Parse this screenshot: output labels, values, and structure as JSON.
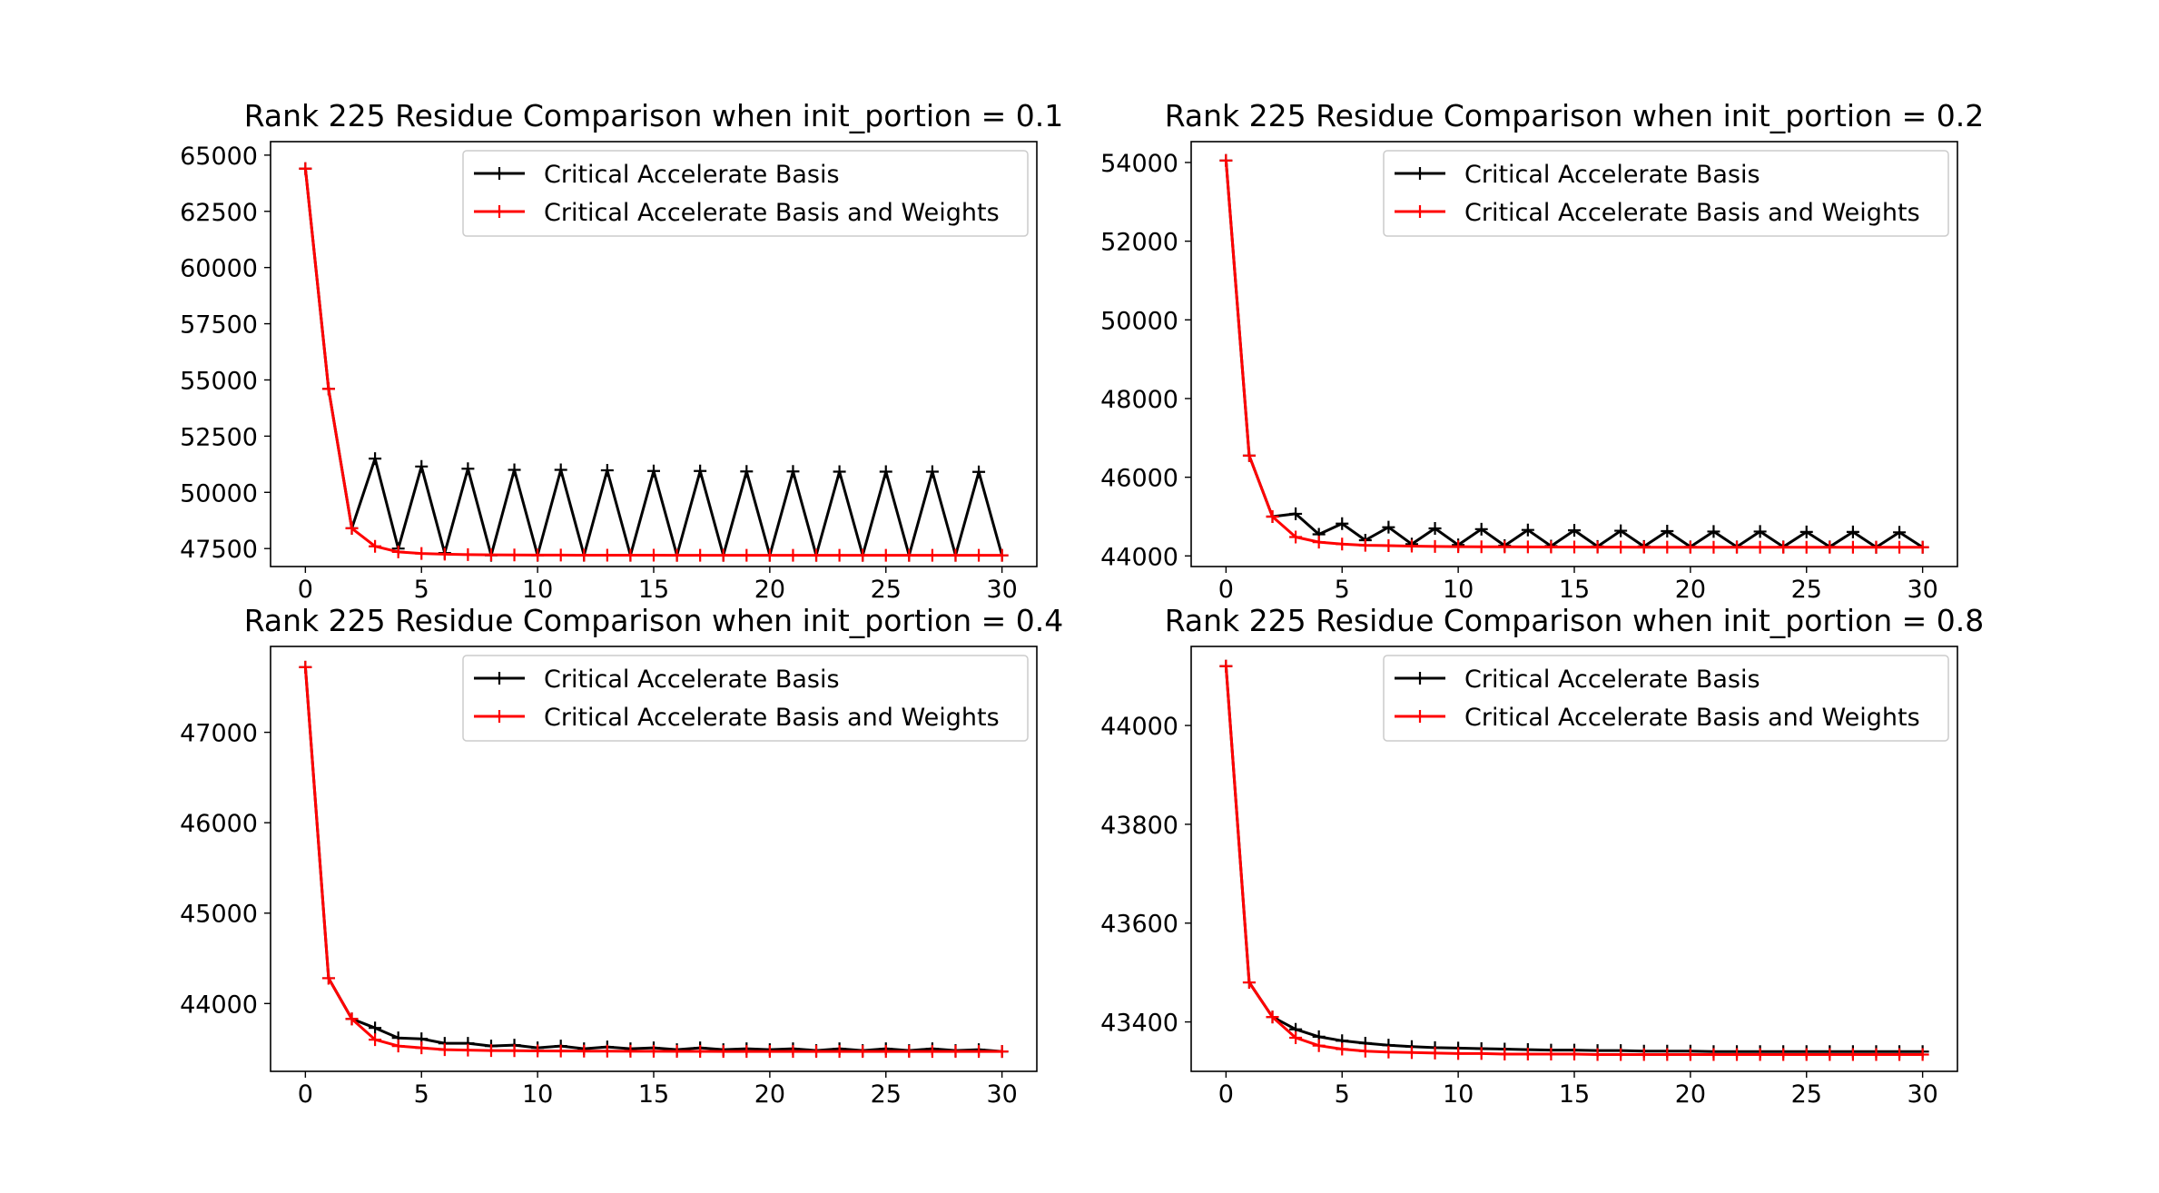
{
  "chart_data": [
    {
      "type": "line",
      "title": "Rank 225 Residue Comparison when init_portion = 0.1",
      "xlabel": "",
      "ylabel": "",
      "xlim": [
        -1.5,
        31.5
      ],
      "ylim": [
        46700,
        65600
      ],
      "xticks": [
        0,
        5,
        10,
        15,
        20,
        25,
        30
      ],
      "yticks": [
        47500,
        50000,
        52500,
        55000,
        57500,
        60000,
        62500,
        65000
      ],
      "ytick_labels": [
        "47500",
        "50000",
        "52500",
        "55000",
        "57500",
        "60000",
        "62500",
        "65000"
      ],
      "legend": "top-right",
      "grid": false,
      "series": [
        {
          "name": "Critical Accelerate Basis",
          "color": "#000000",
          "x": [
            0,
            1,
            2,
            3,
            4,
            5,
            6,
            7,
            8,
            9,
            10,
            11,
            12,
            13,
            14,
            15,
            16,
            17,
            18,
            19,
            20,
            21,
            22,
            23,
            24,
            25,
            26,
            27,
            28,
            29,
            30
          ],
          "y": [
            64400,
            54600,
            48400,
            51500,
            47500,
            51150,
            47300,
            51050,
            47200,
            51000,
            47200,
            51000,
            47200,
            50980,
            47200,
            50950,
            47200,
            50950,
            47200,
            50930,
            47200,
            50930,
            47200,
            50920,
            47200,
            50920,
            47200,
            50920,
            47200,
            50910,
            47200
          ]
        },
        {
          "name": "Critical Accelerate Basis and Weights",
          "color": "#ff0000",
          "x": [
            0,
            1,
            2,
            3,
            4,
            5,
            6,
            7,
            8,
            9,
            10,
            11,
            12,
            13,
            14,
            15,
            16,
            17,
            18,
            19,
            20,
            21,
            22,
            23,
            24,
            25,
            26,
            27,
            28,
            29,
            30
          ],
          "y": [
            64400,
            54600,
            48400,
            47600,
            47350,
            47280,
            47250,
            47230,
            47220,
            47215,
            47210,
            47208,
            47206,
            47205,
            47204,
            47203,
            47202,
            47202,
            47201,
            47201,
            47200,
            47200,
            47200,
            47200,
            47200,
            47200,
            47200,
            47200,
            47200,
            47200,
            47200
          ]
        }
      ]
    },
    {
      "type": "line",
      "title": "Rank 225 Residue Comparison when init_portion = 0.2",
      "xlabel": "",
      "ylabel": "",
      "xlim": [
        -1.5,
        31.5
      ],
      "ylim": [
        43730,
        54530
      ],
      "xticks": [
        0,
        5,
        10,
        15,
        20,
        25,
        30
      ],
      "yticks": [
        44000,
        46000,
        48000,
        50000,
        52000,
        54000
      ],
      "ytick_labels": [
        "44000",
        "46000",
        "48000",
        "50000",
        "52000",
        "54000"
      ],
      "legend": "top-right",
      "grid": false,
      "series": [
        {
          "name": "Critical Accelerate Basis",
          "color": "#000000",
          "x": [
            0,
            1,
            2,
            3,
            4,
            5,
            6,
            7,
            8,
            9,
            10,
            11,
            12,
            13,
            14,
            15,
            16,
            17,
            18,
            19,
            20,
            21,
            22,
            23,
            24,
            25,
            26,
            27,
            28,
            29,
            30
          ],
          "y": [
            54050,
            46550,
            45000,
            45070,
            44550,
            44820,
            44400,
            44730,
            44300,
            44700,
            44280,
            44680,
            44260,
            44660,
            44250,
            44650,
            44240,
            44640,
            44240,
            44630,
            44230,
            44620,
            44230,
            44620,
            44230,
            44610,
            44230,
            44610,
            44220,
            44600,
            44220
          ]
        },
        {
          "name": "Critical Accelerate Basis and Weights",
          "color": "#ff0000",
          "x": [
            0,
            1,
            2,
            3,
            4,
            5,
            6,
            7,
            8,
            9,
            10,
            11,
            12,
            13,
            14,
            15,
            16,
            17,
            18,
            19,
            20,
            21,
            22,
            23,
            24,
            25,
            26,
            27,
            28,
            29,
            30
          ],
          "y": [
            54050,
            46550,
            45000,
            44480,
            44350,
            44300,
            44270,
            44260,
            44250,
            44240,
            44235,
            44232,
            44230,
            44228,
            44226,
            44225,
            44224,
            44223,
            44222,
            44222,
            44221,
            44221,
            44220,
            44220,
            44220,
            44220,
            44220,
            44220,
            44220,
            44220,
            44220
          ]
        }
      ]
    },
    {
      "type": "line",
      "title": "Rank 225 Residue Comparison when init_portion = 0.4",
      "xlabel": "",
      "ylabel": "",
      "xlim": [
        -1.5,
        31.5
      ],
      "ylim": [
        43250,
        47950
      ],
      "xticks": [
        0,
        5,
        10,
        15,
        20,
        25,
        30
      ],
      "yticks": [
        44000,
        45000,
        46000,
        47000
      ],
      "ytick_labels": [
        "44000",
        "45000",
        "46000",
        "47000"
      ],
      "legend": "top-right",
      "grid": false,
      "series": [
        {
          "name": "Critical Accelerate Basis",
          "color": "#000000",
          "x": [
            0,
            1,
            2,
            3,
            4,
            5,
            6,
            7,
            8,
            9,
            10,
            11,
            12,
            13,
            14,
            15,
            16,
            17,
            18,
            19,
            20,
            21,
            22,
            23,
            24,
            25,
            26,
            27,
            28,
            29,
            30
          ],
          "y": [
            47720,
            44280,
            43830,
            43730,
            43620,
            43610,
            43560,
            43560,
            43530,
            43540,
            43510,
            43530,
            43500,
            43520,
            43500,
            43510,
            43490,
            43510,
            43490,
            43500,
            43490,
            43500,
            43480,
            43500,
            43480,
            43500,
            43480,
            43500,
            43480,
            43490,
            43470
          ]
        },
        {
          "name": "Critical Accelerate Basis and Weights",
          "color": "#ff0000",
          "x": [
            0,
            1,
            2,
            3,
            4,
            5,
            6,
            7,
            8,
            9,
            10,
            11,
            12,
            13,
            14,
            15,
            16,
            17,
            18,
            19,
            20,
            21,
            22,
            23,
            24,
            25,
            26,
            27,
            28,
            29,
            30
          ],
          "y": [
            47720,
            44280,
            43830,
            43600,
            43530,
            43510,
            43490,
            43485,
            43480,
            43478,
            43476,
            43475,
            43474,
            43473,
            43472,
            43472,
            43471,
            43471,
            43470,
            43470,
            43470,
            43470,
            43470,
            43470,
            43470,
            43470,
            43470,
            43470,
            43470,
            43470,
            43470
          ]
        }
      ]
    },
    {
      "type": "line",
      "title": "Rank 225 Residue Comparison when init_portion = 0.8",
      "xlabel": "",
      "ylabel": "",
      "xlim": [
        -1.5,
        31.5
      ],
      "ylim": [
        43300,
        44160
      ],
      "xticks": [
        0,
        5,
        10,
        15,
        20,
        25,
        30
      ],
      "yticks": [
        43400,
        43600,
        43800,
        44000
      ],
      "ytick_labels": [
        "43400",
        "43600",
        "43800",
        "44000"
      ],
      "legend": "top-right",
      "grid": false,
      "series": [
        {
          "name": "Critical Accelerate Basis",
          "color": "#000000",
          "x": [
            0,
            1,
            2,
            3,
            4,
            5,
            6,
            7,
            8,
            9,
            10,
            11,
            12,
            13,
            14,
            15,
            16,
            17,
            18,
            19,
            20,
            21,
            22,
            23,
            24,
            25,
            26,
            27,
            28,
            29,
            30
          ],
          "y": [
            44120,
            43480,
            43410,
            43385,
            43370,
            43362,
            43357,
            43353,
            43350,
            43348,
            43347,
            43346,
            43345,
            43344,
            43343,
            43343,
            43342,
            43342,
            43341,
            43341,
            43341,
            43340,
            43340,
            43340,
            43340,
            43340,
            43340,
            43340,
            43340,
            43340,
            43340
          ]
        },
        {
          "name": "Critical Accelerate Basis and Weights",
          "color": "#ff0000",
          "x": [
            0,
            1,
            2,
            3,
            4,
            5,
            6,
            7,
            8,
            9,
            10,
            11,
            12,
            13,
            14,
            15,
            16,
            17,
            18,
            19,
            20,
            21,
            22,
            23,
            24,
            25,
            26,
            27,
            28,
            29,
            30
          ],
          "y": [
            44120,
            43480,
            43410,
            43368,
            43352,
            43345,
            43341,
            43339,
            43338,
            43337,
            43336,
            43336,
            43335,
            43335,
            43335,
            43335,
            43334,
            43334,
            43334,
            43334,
            43334,
            43334,
            43334,
            43334,
            43334,
            43334,
            43334,
            43334,
            43334,
            43334,
            43334
          ]
        }
      ]
    }
  ]
}
